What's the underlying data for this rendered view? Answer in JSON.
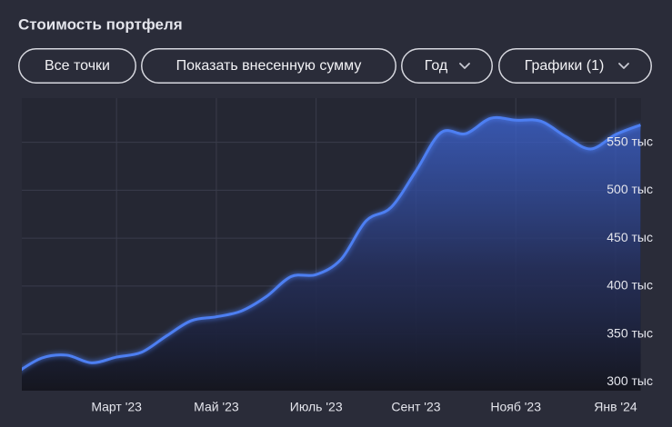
{
  "chart_data": {
    "type": "area",
    "title": "Стоимость портфеля",
    "categories": [
      null,
      null,
      null,
      null,
      "Март '23",
      null,
      null,
      null,
      "Май '23",
      null,
      null,
      null,
      "Июль '23",
      null,
      null,
      null,
      "Сент '23",
      null,
      null,
      null,
      "Нояб '23",
      null,
      null,
      null,
      "Янв '24",
      null
    ],
    "series": [
      {
        "color": "#4d7ff2",
        "values": [
          310,
          325,
          328,
          320,
          326,
          331,
          348,
          364,
          368,
          374,
          389,
          410,
          412,
          428,
          468,
          482,
          520,
          560,
          559,
          575,
          573,
          572,
          556,
          543,
          558,
          568
        ]
      }
    ],
    "ylim": [
      291,
      596
    ],
    "yticks": [
      {
        "value": 300,
        "label": "300 тыс"
      },
      {
        "value": 350,
        "label": "350 тыс"
      },
      {
        "value": 400,
        "label": "400 тыс"
      },
      {
        "value": 450,
        "label": "450 тыс"
      },
      {
        "value": 500,
        "label": "500 тыс"
      },
      {
        "value": 550,
        "label": "550 тыс"
      }
    ],
    "grid": true
  },
  "buttons": [
    {
      "label": "Все точки"
    },
    {
      "label": "Показать внесенную сумму"
    },
    {
      "label": "Год",
      "dropdown": true
    },
    {
      "label": "Графики (1)",
      "dropdown": true
    }
  ]
}
